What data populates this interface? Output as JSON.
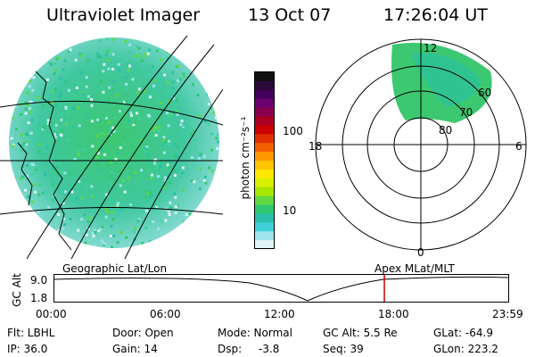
{
  "header": {
    "instrument": "Ultraviolet Imager",
    "date": "13 Oct 07",
    "time": "17:26:04 UT"
  },
  "colorbar": {
    "unit_label": "photon cm⁻²s⁻¹",
    "tick_labels": [
      "100",
      "10"
    ],
    "colors": [
      "#101010",
      "#2a0a3a",
      "#44005a",
      "#6a0070",
      "#8a0050",
      "#aa0022",
      "#cc0000",
      "#e03000",
      "#f06000",
      "#ff9800",
      "#ffc400",
      "#ffe800",
      "#d8f000",
      "#a8e800",
      "#60d840",
      "#30c870",
      "#28c0a8",
      "#40d0d8",
      "#a0e4ec",
      "#e0f4f6"
    ]
  },
  "polar": {
    "labels": {
      "top": "12",
      "right": "6",
      "left": "18",
      "bottom": "0",
      "r60": "60",
      "r70": "70",
      "r80": "80"
    }
  },
  "orbit": {
    "left_label": "Geographic Lat/Lon",
    "right_label": "Apex MLat/MLT",
    "axis_label": "GC Alt",
    "y_ticks": [
      "9.0",
      "1.8"
    ],
    "x_ticks": [
      "00:00",
      "06:00",
      "12:00",
      "18:00",
      "23:59"
    ],
    "marker_color": "#cc0000",
    "marker_time_fraction": 0.727
  },
  "footer": {
    "flt": "Flt: LBHL",
    "ip": "IP: 36.0",
    "door": "Door: Open",
    "gain": "Gain: 14",
    "mode": "Mode: Normal",
    "dsp": "Dsp:",
    "dsp_value": "-3.8",
    "gc_alt": "GC Alt: 5.5 Re",
    "seq": "Seq: 39",
    "glat": "GLat: -64.9",
    "glon": "GLon: 223.2"
  }
}
